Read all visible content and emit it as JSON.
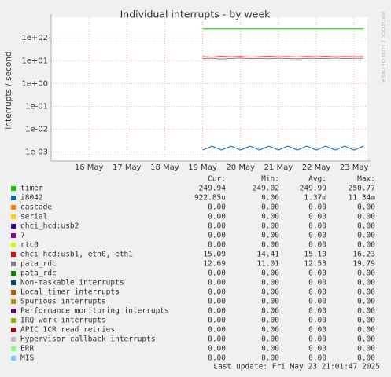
{
  "chart_data": {
    "type": "line",
    "title": "Individual interrupts - by week",
    "y_label": "interrupts / second",
    "side_note": "RRDTOOL / TOBI OETIKER",
    "footer": "Last update: Fri May 23 21:01:47 2025",
    "log_scale": true,
    "grid": true,
    "ylim": [
      0.0004,
      800
    ],
    "yticks": [
      {
        "value": 0.001,
        "label": "1e-03"
      },
      {
        "value": 0.01,
        "label": "1e-02"
      },
      {
        "value": 0.1,
        "label": "1e-01"
      },
      {
        "value": 1,
        "label": "1e+00"
      },
      {
        "value": 10,
        "label": "1e+01"
      },
      {
        "value": 100,
        "label": "1e+02"
      }
    ],
    "xlim": [
      15,
      23.35
    ],
    "xticks": [
      {
        "value": 16,
        "label": "16 May"
      },
      {
        "value": 17,
        "label": "17 May"
      },
      {
        "value": 18,
        "label": "18 May"
      },
      {
        "value": 19,
        "label": "19 May"
      },
      {
        "value": 20,
        "label": "20 May"
      },
      {
        "value": 21,
        "label": "21 May"
      },
      {
        "value": 22,
        "label": "22 May"
      },
      {
        "value": 23,
        "label": "23 May"
      }
    ],
    "x": [
      19,
      19.25,
      19.5,
      19.75,
      20,
      20.25,
      20.5,
      20.75,
      21,
      21.25,
      21.5,
      21.75,
      22,
      22.25,
      22.5,
      22.75,
      23,
      23.25
    ],
    "stat_columns": [
      "Cur:",
      "Min:",
      "Avg:",
      "Max:"
    ],
    "series": [
      {
        "name": "timer",
        "color": "#00cc00",
        "values": [
          250,
          249.9,
          250.1,
          250,
          249.8,
          250.2,
          250,
          249.9,
          250,
          250.1,
          250,
          249.9,
          250,
          250.2,
          249.9,
          250,
          250,
          249.9
        ],
        "stats": [
          "249.94",
          "249.02",
          "249.99",
          "250.77"
        ]
      },
      {
        "name": "i8042",
        "color": "#0066b3",
        "values": [
          0.0012,
          0.0018,
          0.0012,
          0.0018,
          0.0012,
          0.0018,
          0.0012,
          0.0018,
          0.0012,
          0.0018,
          0.0012,
          0.0018,
          0.0012,
          0.0018,
          0.0012,
          0.0018,
          0.0012,
          0.0018
        ],
        "stats": [
          "922.85u",
          "0.00",
          "1.37m",
          "11.34m"
        ]
      },
      {
        "name": "cascade",
        "color": "#ff8000",
        "stats": [
          "0.00",
          "0.00",
          "0.00",
          "0.00"
        ]
      },
      {
        "name": "serial",
        "color": "#ffcc00",
        "stats": [
          "0.00",
          "0.00",
          "0.00",
          "0.00"
        ]
      },
      {
        "name": "ohci_hcd:usb2",
        "color": "#330099",
        "stats": [
          "0.00",
          "0.00",
          "0.00",
          "0.00"
        ]
      },
      {
        "name": "7",
        "color": "#990099",
        "stats": [
          "0.00",
          "0.00",
          "0.00",
          "0.00"
        ]
      },
      {
        "name": "rtc0",
        "color": "#ccff00",
        "stats": [
          "0.00",
          "0.00",
          "0.00",
          "0.00"
        ]
      },
      {
        "name": "ehci_hcd:usb1, eth0, eth1",
        "color": "#ff0000",
        "values": [
          15.2,
          14.6,
          15.4,
          14.9,
          15.3,
          14.5,
          15.1,
          15.5,
          14.8,
          15.2,
          14.7,
          15.3,
          15,
          15.4,
          14.9,
          15.2,
          15.1,
          15.1
        ],
        "stats": [
          "15.09",
          "14.41",
          "15.10",
          "16.23"
        ]
      },
      {
        "name": "pata_rdc",
        "color": "#808080",
        "values": [
          12.4,
          12.9,
          11.8,
          12.6,
          13.1,
          12.2,
          12.7,
          12.3,
          12.9,
          12.5,
          12.1,
          12.8,
          12.6,
          12.4,
          13,
          12.5,
          12.7,
          12.7
        ],
        "stats": [
          "12.69",
          "11.01",
          "12.53",
          "19.79"
        ]
      },
      {
        "name": "pata_rdc",
        "color": "#008f00",
        "stats": [
          "0.00",
          "0.00",
          "0.00",
          "0.00"
        ]
      },
      {
        "name": "Non-maskable interrupts",
        "color": "#00487d",
        "stats": [
          "0.00",
          "0.00",
          "0.00",
          "0.00"
        ]
      },
      {
        "name": "Local timer interrupts",
        "color": "#b35a00",
        "stats": [
          "0.00",
          "0.00",
          "0.00",
          "0.00"
        ]
      },
      {
        "name": "Spurious interrupts",
        "color": "#b38f00",
        "stats": [
          "0.00",
          "0.00",
          "0.00",
          "0.00"
        ]
      },
      {
        "name": "Performance monitoring interrupts",
        "color": "#6b006b",
        "stats": [
          "0.00",
          "0.00",
          "0.00",
          "0.00"
        ]
      },
      {
        "name": "IRQ work interrupts",
        "color": "#8fb300",
        "stats": [
          "0.00",
          "0.00",
          "0.00",
          "0.00"
        ]
      },
      {
        "name": "APIC ICR read retries",
        "color": "#b30000",
        "stats": [
          "0.00",
          "0.00",
          "0.00",
          "0.00"
        ]
      },
      {
        "name": "Hypervisor callback interrupts",
        "color": "#bebebe",
        "stats": [
          "0.00",
          "0.00",
          "0.00",
          "0.00"
        ]
      },
      {
        "name": "ERR",
        "color": "#80ff80",
        "stats": [
          "0.00",
          "0.00",
          "0.00",
          "0.00"
        ]
      },
      {
        "name": "MIS",
        "color": "#80c9ff",
        "stats": [
          "0.00",
          "0.00",
          "0.00",
          "0.00"
        ]
      }
    ]
  }
}
